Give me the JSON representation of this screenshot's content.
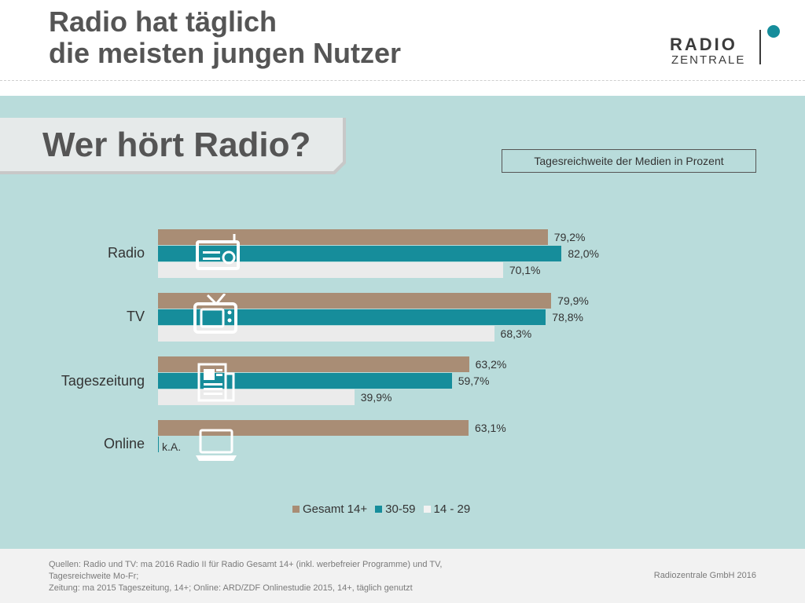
{
  "header": {
    "title_line1": "Radio hat täglich",
    "title_line2": "die meisten jungen Nutzer",
    "logo_top": "RADIO",
    "logo_bottom": "ZENTRALE"
  },
  "banner": {
    "text": "Wer hört Radio?"
  },
  "subtitle": "Tagesreichweite der Medien in Prozent",
  "colors": {
    "gesamt": "#a98d75",
    "mid": "#168d9b",
    "young": "#ebebeb",
    "panel": "#b9dcdb"
  },
  "chart_data": {
    "type": "bar",
    "orientation": "horizontal",
    "categories": [
      "Radio",
      "TV",
      "Tageszeitung",
      "Online"
    ],
    "series": [
      {
        "name": "Gesamt 14+",
        "values": [
          79.2,
          79.9,
          63.2,
          63.1
        ],
        "labels": [
          "79,2%",
          "79,9%",
          "63,2%",
          "63,1%"
        ]
      },
      {
        "name": "30-59",
        "values": [
          82.0,
          78.8,
          59.7,
          null
        ],
        "labels": [
          "82,0%",
          "78,8%",
          "59,7%",
          "k.A."
        ]
      },
      {
        "name": "14 - 29",
        "values": [
          70.1,
          68.3,
          39.9,
          null
        ],
        "labels": [
          "70,1%",
          "68,3%",
          "39,9%",
          ""
        ]
      }
    ],
    "xlim": [
      0,
      100
    ],
    "legend_position": "bottom",
    "icons": [
      "radio-icon",
      "tv-icon",
      "newspaper-icon",
      "laptop-icon"
    ]
  },
  "footer": {
    "sources_line1": "Quellen: Radio und TV: ma 2016 Radio II für Radio Gesamt  14+ (inkl. werbefreier Programme) und TV,",
    "sources_line2": "Tagesreichweite Mo-Fr;",
    "sources_line3": "Zeitung: ma 2015 Tageszeitung, 14+; Online: ARD/ZDF Onlinestudie 2015, 14+, täglich genutzt",
    "copyright": "Radiozentrale GmbH 2016"
  }
}
